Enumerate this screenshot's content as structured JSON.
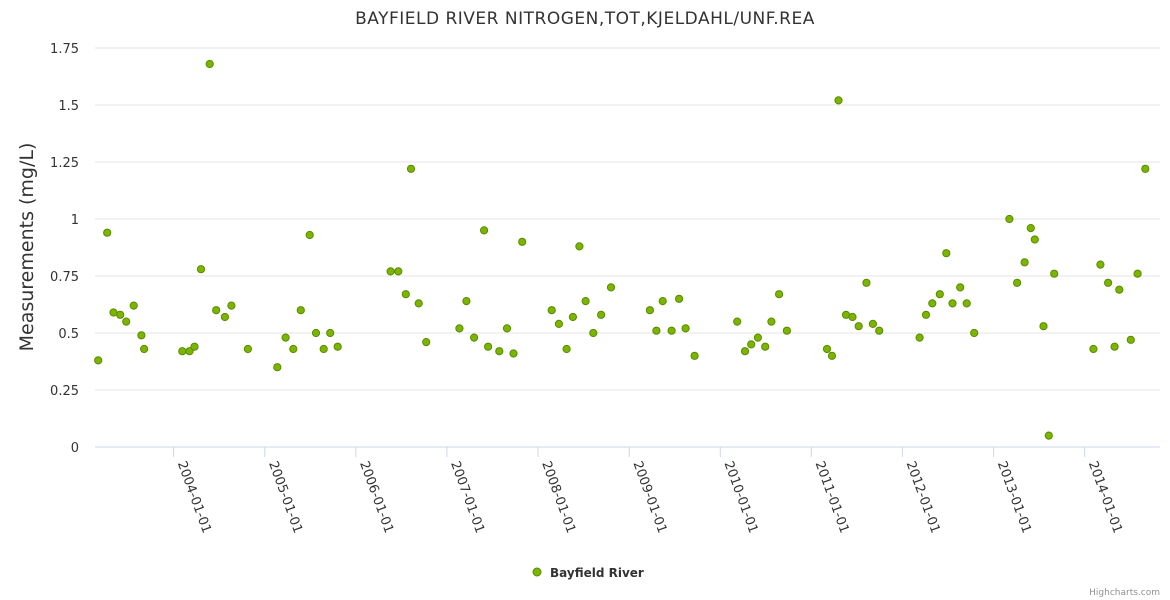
{
  "chart_data": {
    "type": "scatter",
    "title": "BAYFIELD RIVER NITROGEN,TOT,KJELDAHL/UNF.REA",
    "ylabel": "Measurements (mg/L)",
    "xlabel": "",
    "ylim": [
      0,
      1.75
    ],
    "yticks": [
      "0",
      "0.25",
      "0.5",
      "0.75",
      "1",
      "1.25",
      "1.5",
      "1.75"
    ],
    "xlim": [
      "2003-02-20",
      "2014-10-30"
    ],
    "xticks": [
      "2004-01-01",
      "2005-01-01",
      "2006-01-01",
      "2007-01-01",
      "2008-01-01",
      "2009-01-01",
      "2010-01-01",
      "2011-01-01",
      "2012-01-01",
      "2013-01-01",
      "2014-01-01"
    ],
    "grid": true,
    "legend_position": "bottom-center",
    "colors": {
      "marker_fill": "#7cb500",
      "marker_stroke": "#5a8a00",
      "grid": "#e6e6e6",
      "axis": "#ccd6eb"
    },
    "series": [
      {
        "name": "Bayfield River",
        "points": [
          [
            "2003-03-05",
            0.38
          ],
          [
            "2003-04-10",
            0.94
          ],
          [
            "2003-05-05",
            0.59
          ],
          [
            "2003-06-01",
            0.58
          ],
          [
            "2003-06-25",
            0.55
          ],
          [
            "2003-07-25",
            0.62
          ],
          [
            "2003-08-25",
            0.49
          ],
          [
            "2003-09-05",
            0.43
          ],
          [
            "2004-02-05",
            0.42
          ],
          [
            "2004-03-05",
            0.42
          ],
          [
            "2004-03-25",
            0.44
          ],
          [
            "2004-04-20",
            0.78
          ],
          [
            "2004-05-25",
            1.68
          ],
          [
            "2004-06-20",
            0.6
          ],
          [
            "2004-07-25",
            0.57
          ],
          [
            "2004-08-20",
            0.62
          ],
          [
            "2004-10-25",
            0.43
          ],
          [
            "2005-02-20",
            0.35
          ],
          [
            "2005-03-25",
            0.48
          ],
          [
            "2005-04-25",
            0.43
          ],
          [
            "2005-05-25",
            0.6
          ],
          [
            "2005-06-30",
            0.93
          ],
          [
            "2005-07-25",
            0.5
          ],
          [
            "2005-08-25",
            0.43
          ],
          [
            "2005-09-20",
            0.5
          ],
          [
            "2005-10-20",
            0.44
          ],
          [
            "2006-05-20",
            0.77
          ],
          [
            "2006-06-20",
            0.77
          ],
          [
            "2006-07-20",
            0.67
          ],
          [
            "2006-08-10",
            1.22
          ],
          [
            "2006-09-10",
            0.63
          ],
          [
            "2006-10-10",
            0.46
          ],
          [
            "2007-02-20",
            0.52
          ],
          [
            "2007-03-20",
            0.64
          ],
          [
            "2007-04-20",
            0.48
          ],
          [
            "2007-05-30",
            0.95
          ],
          [
            "2007-06-15",
            0.44
          ],
          [
            "2007-07-30",
            0.42
          ],
          [
            "2007-08-30",
            0.52
          ],
          [
            "2007-09-25",
            0.41
          ],
          [
            "2007-10-30",
            0.9
          ],
          [
            "2008-02-25",
            0.6
          ],
          [
            "2008-03-25",
            0.54
          ],
          [
            "2008-04-25",
            0.43
          ],
          [
            "2008-05-20",
            0.57
          ],
          [
            "2008-06-15",
            0.88
          ],
          [
            "2008-07-10",
            0.64
          ],
          [
            "2008-08-10",
            0.5
          ],
          [
            "2008-09-10",
            0.58
          ],
          [
            "2008-10-20",
            0.7
          ],
          [
            "2009-03-25",
            0.6
          ],
          [
            "2009-04-20",
            0.51
          ],
          [
            "2009-05-15",
            0.64
          ],
          [
            "2009-06-20",
            0.51
          ],
          [
            "2009-07-20",
            0.65
          ],
          [
            "2009-08-15",
            0.52
          ],
          [
            "2009-09-20",
            0.4
          ],
          [
            "2010-03-10",
            0.55
          ],
          [
            "2010-04-10",
            0.42
          ],
          [
            "2010-05-05",
            0.45
          ],
          [
            "2010-06-01",
            0.48
          ],
          [
            "2010-06-30",
            0.44
          ],
          [
            "2010-07-25",
            0.55
          ],
          [
            "2010-08-25",
            0.67
          ],
          [
            "2010-09-25",
            0.51
          ],
          [
            "2011-03-05",
            0.43
          ],
          [
            "2011-03-25",
            0.4
          ],
          [
            "2011-04-20",
            1.52
          ],
          [
            "2011-05-20",
            0.58
          ],
          [
            "2011-06-15",
            0.57
          ],
          [
            "2011-07-10",
            0.53
          ],
          [
            "2011-08-10",
            0.72
          ],
          [
            "2011-09-05",
            0.54
          ],
          [
            "2011-09-30",
            0.51
          ],
          [
            "2012-03-10",
            0.48
          ],
          [
            "2012-04-05",
            0.58
          ],
          [
            "2012-04-30",
            0.63
          ],
          [
            "2012-05-30",
            0.67
          ],
          [
            "2012-06-25",
            0.85
          ],
          [
            "2012-07-20",
            0.63
          ],
          [
            "2012-08-20",
            0.7
          ],
          [
            "2012-09-15",
            0.63
          ],
          [
            "2012-10-15",
            0.5
          ],
          [
            "2013-03-05",
            1.0
          ],
          [
            "2013-04-05",
            0.72
          ],
          [
            "2013-05-05",
            0.81
          ],
          [
            "2013-05-30",
            0.96
          ],
          [
            "2013-06-15",
            0.91
          ],
          [
            "2013-07-20",
            0.53
          ],
          [
            "2013-08-10",
            0.05
          ],
          [
            "2013-09-01",
            0.76
          ],
          [
            "2014-02-05",
            0.43
          ],
          [
            "2014-03-05",
            0.8
          ],
          [
            "2014-04-05",
            0.72
          ],
          [
            "2014-05-01",
            0.44
          ],
          [
            "2014-05-20",
            0.69
          ],
          [
            "2014-07-05",
            0.47
          ],
          [
            "2014-08-01",
            0.76
          ],
          [
            "2014-09-01",
            1.22
          ]
        ]
      }
    ]
  },
  "credits": "Highcharts.com"
}
